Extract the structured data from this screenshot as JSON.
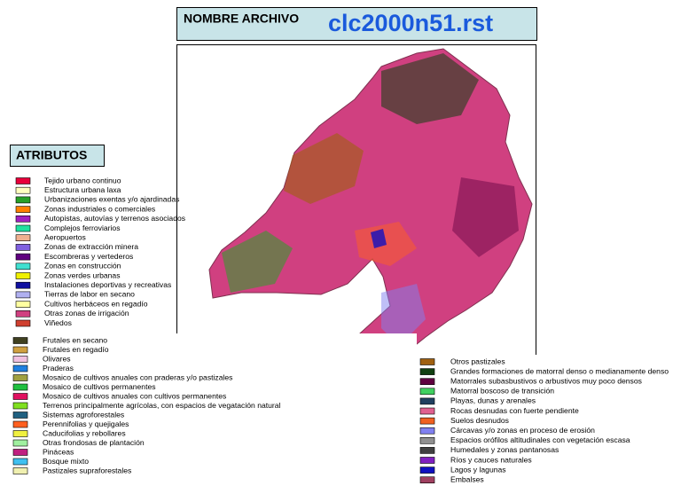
{
  "header": {
    "label": "NOMBRE ARCHIVO",
    "filename": "clc2000n51.rst"
  },
  "attributes_title": "ATRIBUTOS",
  "legends": [
    {
      "items": [
        {
          "label": "Tejido urbano continuo",
          "color": "#e8003a"
        },
        {
          "label": "Estructura urbana laxa",
          "color": "#ffffc0"
        },
        {
          "label": "Urbanizaciones exentas y/o ajardinadas",
          "color": "#28a028"
        },
        {
          "label": "Zonas industriales o comerciales",
          "color": "#ff8000"
        },
        {
          "label": "Autopistas, autovías y terrenos asociados",
          "color": "#a020c0"
        },
        {
          "label": "Complejos ferroviarios",
          "color": "#20e0a0"
        },
        {
          "label": "Aeropuertos",
          "color": "#f0b090"
        },
        {
          "label": "Zonas de extracción minera",
          "color": "#8060e0"
        },
        {
          "label": "Escombreras y vertederos",
          "color": "#600080"
        },
        {
          "label": "Zonas en construcción",
          "color": "#40e0d0"
        },
        {
          "label": "Zonas verdes urbanas",
          "color": "#f0f000"
        },
        {
          "label": "Instalaciones deportivas y recreativas",
          "color": "#1010a0"
        },
        {
          "label": "Tierras de labor en secano",
          "color": "#b0b0f0"
        },
        {
          "label": "Cultivos herbáceos en regadío",
          "color": "#ffffa0"
        },
        {
          "label": "Otras zonas de irrigación",
          "color": "#d04080"
        },
        {
          "label": "Viñedos",
          "color": "#d04030"
        }
      ]
    },
    {
      "items": [
        {
          "label": "Frutales en secano",
          "color": "#404020"
        },
        {
          "label": "Frutales en regadío",
          "color": "#d0a040"
        },
        {
          "label": "Olivares",
          "color": "#f0c0e0"
        },
        {
          "label": "Praderas",
          "color": "#2080e0"
        },
        {
          "label": "Mosaico de cultivos anuales con praderas y/o pastizales",
          "color": "#a0a040"
        },
        {
          "label": "Mosaico de cultivos permanentes",
          "color": "#20c040"
        },
        {
          "label": "Mosaico de cultivos anuales con cultivos permanentes",
          "color": "#e01060"
        },
        {
          "label": "Terrenos principalmente agrícolas, con espacios de vegatación natural",
          "color": "#80e020"
        },
        {
          "label": "Sistemas agroforestales",
          "color": "#206080"
        },
        {
          "label": "Perennifolias y quejigales",
          "color": "#ff6020"
        },
        {
          "label": "Caducifolias y rebollares",
          "color": "#f0f040"
        },
        {
          "label": "Otras frondosas de plantación",
          "color": "#a0f0a0"
        },
        {
          "label": "Pináceas",
          "color": "#c02080"
        },
        {
          "label": "Bosque mixto",
          "color": "#40c0f0"
        },
        {
          "label": "Pastizales supraforestales",
          "color": "#f0f0b0"
        }
      ]
    },
    {
      "items": [
        {
          "label": "Otros pastizales",
          "color": "#a06010"
        },
        {
          "label": "Grandes formaciones de matorral denso o medianamente denso",
          "color": "#104010"
        },
        {
          "label": "Matorrales subasbustivos o arbustivos muy poco densos",
          "color": "#600040"
        },
        {
          "label": "Matorral boscoso de transición",
          "color": "#40d060"
        },
        {
          "label": "Playas, dunas y arenales",
          "color": "#204060"
        },
        {
          "label": "Rocas desnudas con fuerte pendiente",
          "color": "#e06090"
        },
        {
          "label": "Suelos desnudos",
          "color": "#f06020"
        },
        {
          "label": "Cárcavas y/o zonas en proceso de erosión",
          "color": "#8080f0"
        },
        {
          "label": "Espacios orófilos altitudinales con vegetación escasa",
          "color": "#909090"
        },
        {
          "label": "Humedales y zonas pantanosas",
          "color": "#404040"
        },
        {
          "label": "Ríos y cauces naturales",
          "color": "#8020c0"
        },
        {
          "label": "Lagos y lagunas",
          "color": "#1010c0"
        },
        {
          "label": "Embalses",
          "color": "#a04060"
        }
      ]
    }
  ]
}
